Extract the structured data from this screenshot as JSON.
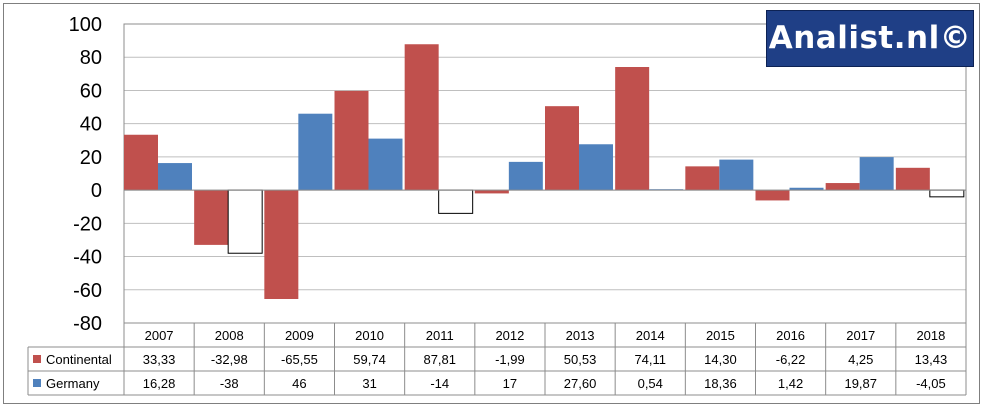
{
  "brand": {
    "text": "Analist.nl©"
  },
  "chart_data": {
    "type": "bar",
    "categories": [
      "2007",
      "2008",
      "2009",
      "2010",
      "2011",
      "2012",
      "2013",
      "2014",
      "2015",
      "2016",
      "2017",
      "2018"
    ],
    "ylim": [
      -80,
      100
    ],
    "yticks": [
      "100",
      "80",
      "60",
      "40",
      "20",
      "0",
      "-20",
      "-40",
      "-60",
      "-80"
    ],
    "grid": true,
    "series": [
      {
        "name": "Continental",
        "color": "#c0504d",
        "negative_color": "#c0504d",
        "values": [
          33.33,
          -32.98,
          -65.55,
          59.74,
          87.81,
          -1.99,
          50.53,
          74.11,
          14.3,
          -6.22,
          4.25,
          13.43
        ],
        "labels": [
          "33,33",
          "-32,98",
          "-65,55",
          "59,74",
          "87,81",
          "-1,99",
          "50,53",
          "74,11",
          "14,30",
          "-6,22",
          "4,25",
          "13,43"
        ]
      },
      {
        "name": "Germany",
        "color": "#4f81bd",
        "negative_color": "#ffffff",
        "values": [
          16.28,
          -38,
          46,
          31,
          -14,
          17,
          27.6,
          0.54,
          18.36,
          1.42,
          19.87,
          -4.05
        ],
        "labels": [
          "16,28",
          "-38",
          "46",
          "31",
          "-14",
          "17",
          "27,60",
          "0,54",
          "18,36",
          "1,42",
          "19,87",
          "-4,05"
        ]
      }
    ]
  }
}
